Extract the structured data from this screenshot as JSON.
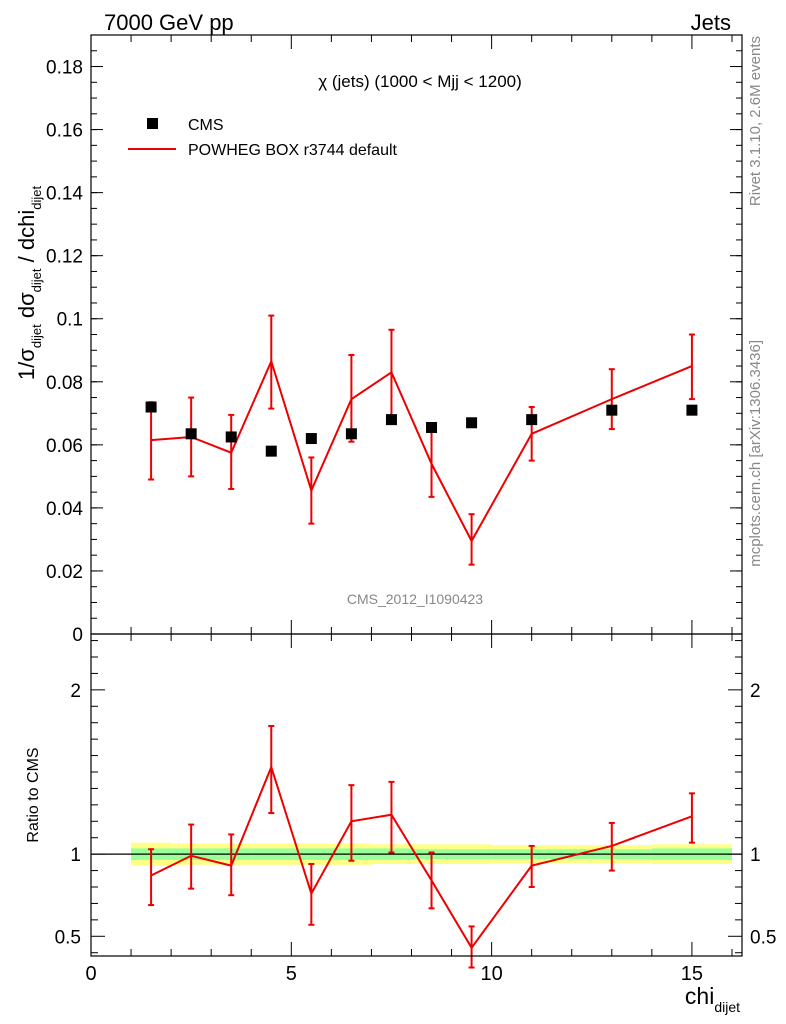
{
  "header": {
    "left_label": "7000 GeV pp",
    "right_label": "Jets"
  },
  "side_labels": {
    "rivet": "Rivet 3.1.10,  2.6M events",
    "mcplots": "mcplots.cern.ch [arXiv:1306.3436]"
  },
  "chart_data": [
    {
      "type": "scatter",
      "title": "χ (jets) (1000 < Mjj < 1200)",
      "watermark": "CMS_2012_I1090423",
      "ylabel": "1/σ_dijet dσ_dijet / dchi_dijet",
      "ylabel_parts": {
        "main": "1/σ",
        "sub1": "dijet",
        "mid": " dσ",
        "sub2": "dijet",
        "tail": " / dchi",
        "sub3": "dijet"
      },
      "xlim": [
        0,
        16.25
      ],
      "ylim": [
        0,
        0.19
      ],
      "yticks": [
        0,
        0.02,
        0.04,
        0.06,
        0.08,
        0.1,
        0.12,
        0.14,
        0.16,
        0.18
      ],
      "ytick_labels": [
        "0",
        "0.02",
        "0.04",
        "0.06",
        "0.08",
        "0.1",
        "0.12",
        "0.14",
        "0.16",
        "0.18"
      ],
      "legend_position": "top-left",
      "series": [
        {
          "name": "CMS",
          "style": "markers",
          "color": "#000000",
          "x": [
            1.5,
            2.5,
            3.5,
            4.5,
            5.5,
            6.5,
            7.5,
            8.5,
            9.5,
            11.0,
            13.0,
            15.0
          ],
          "y": [
            0.072,
            0.0635,
            0.0625,
            0.058,
            0.062,
            0.0635,
            0.068,
            0.0655,
            0.067,
            0.068,
            0.071,
            0.071
          ]
        },
        {
          "name": "POWHEG BOX r3744 default",
          "style": "line",
          "color": "#ee0000",
          "x": [
            1.5,
            2.5,
            3.5,
            4.5,
            5.5,
            6.5,
            7.5,
            8.5,
            9.5,
            11.0,
            13.0,
            15.0
          ],
          "xerr": [
            0.5,
            0.5,
            0.5,
            0.5,
            0.5,
            0.5,
            0.5,
            0.5,
            0.5,
            1.0,
            1.0,
            1.0
          ],
          "y": [
            0.0615,
            0.0625,
            0.0575,
            0.0865,
            0.0455,
            0.0745,
            0.083,
            0.054,
            0.0295,
            0.0635,
            0.0745,
            0.085
          ],
          "yerr_low": [
            0.0125,
            0.0125,
            0.0115,
            0.015,
            0.0105,
            0.0135,
            0.0145,
            0.0105,
            0.0075,
            0.0085,
            0.0095,
            0.0105
          ],
          "yerr_high": [
            0.012,
            0.0125,
            0.012,
            0.0145,
            0.0105,
            0.014,
            0.0135,
            0.0105,
            0.0085,
            0.0085,
            0.0095,
            0.01
          ]
        }
      ]
    },
    {
      "type": "line",
      "ylabel": "Ratio to CMS",
      "xlabel": "chi_dijet",
      "xlabel_parts": {
        "main": "chi",
        "sub": "dijet"
      },
      "xlim": [
        0,
        16.25
      ],
      "ylim": [
        0.38,
        2.34
      ],
      "xticks": [
        0,
        5,
        10,
        15
      ],
      "xtick_labels": [
        "0",
        "5",
        "10",
        "15"
      ],
      "yticks_labeled": [
        0.5,
        1,
        2
      ],
      "ytick_labels": [
        "0.5",
        "1",
        "2"
      ],
      "reference_line": 1,
      "band": {
        "colors": {
          "outer": "#ffff88",
          "inner": "#99ff99"
        },
        "x_edges": [
          1,
          2,
          3,
          4,
          5,
          6,
          7,
          8,
          9,
          10,
          12,
          14,
          16
        ],
        "outer_half_width": [
          0.07,
          0.065,
          0.065,
          0.065,
          0.065,
          0.065,
          0.06,
          0.06,
          0.06,
          0.055,
          0.055,
          0.06
        ],
        "inner_half_width": [
          0.035,
          0.035,
          0.035,
          0.035,
          0.035,
          0.035,
          0.035,
          0.03,
          0.03,
          0.03,
          0.03,
          0.035
        ]
      },
      "series": [
        {
          "name": "POWHEG BOX r3744 default",
          "color": "#ee0000",
          "x": [
            1.5,
            2.5,
            3.5,
            4.5,
            5.5,
            6.5,
            7.5,
            8.5,
            9.5,
            11.0,
            13.0,
            15.0
          ],
          "xerr": [
            0.5,
            0.5,
            0.5,
            0.5,
            0.5,
            0.5,
            0.5,
            0.5,
            0.5,
            1.0,
            1.0,
            1.0
          ],
          "y": [
            0.87,
            0.99,
            0.93,
            1.53,
            0.76,
            1.2,
            1.24,
            0.84,
            0.43,
            0.93,
            1.05,
            1.23
          ],
          "yerr_low": [
            0.18,
            0.2,
            0.18,
            0.28,
            0.19,
            0.24,
            0.23,
            0.17,
            0.12,
            0.13,
            0.15,
            0.16
          ],
          "yerr_high": [
            0.16,
            0.19,
            0.19,
            0.25,
            0.18,
            0.22,
            0.2,
            0.17,
            0.13,
            0.12,
            0.14,
            0.14
          ]
        }
      ]
    }
  ]
}
